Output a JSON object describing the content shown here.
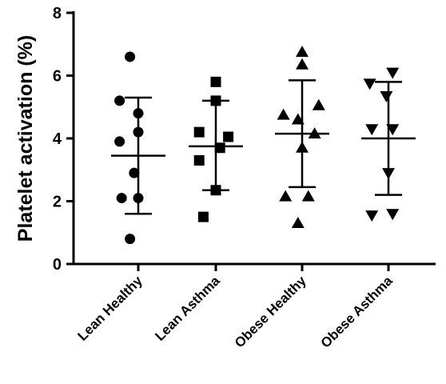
{
  "chart_data": {
    "type": "scatter",
    "title": "",
    "xlabel": "",
    "ylabel": "Platelet activation (%)",
    "ylim": [
      0,
      8
    ],
    "yticks": [
      0,
      2,
      4,
      6,
      8
    ],
    "categories": [
      "Lean Healthy",
      "Lean Asthma",
      "Obese Healthy",
      "Obese Asthma"
    ],
    "grid": false,
    "series": [
      {
        "marker": "circle",
        "mean": 3.45,
        "sd_upper": 5.3,
        "sd_lower": 1.6,
        "points": [
          {
            "dx": 0.3,
            "y": 6.6
          },
          {
            "dx": 0.05,
            "y": 5.2
          },
          {
            "dx": 0.5,
            "y": 4.8
          },
          {
            "dx": 0.5,
            "y": 4.2
          },
          {
            "dx": 0.05,
            "y": 3.9
          },
          {
            "dx": 0.4,
            "y": 2.9
          },
          {
            "dx": 0.1,
            "y": 2.1
          },
          {
            "dx": 0.5,
            "y": 2.1
          },
          {
            "dx": 0.3,
            "y": 0.8
          }
        ]
      },
      {
        "marker": "square",
        "mean": 3.75,
        "sd_upper": 5.2,
        "sd_lower": 2.35,
        "points": [
          {
            "dx": 0.5,
            "y": 5.8
          },
          {
            "dx": 0.5,
            "y": 5.2
          },
          {
            "dx": 0.1,
            "y": 4.2
          },
          {
            "dx": 0.8,
            "y": 4.05
          },
          {
            "dx": 0.6,
            "y": 3.7
          },
          {
            "dx": 0.1,
            "y": 3.3
          },
          {
            "dx": 0.5,
            "y": 2.35
          },
          {
            "dx": 0.2,
            "y": 1.5
          }
        ]
      },
      {
        "marker": "triangle-up",
        "mean": 4.15,
        "sd_upper": 5.85,
        "sd_lower": 2.45,
        "points": [
          {
            "dx": 0.5,
            "y": 6.75
          },
          {
            "dx": 0.5,
            "y": 6.35
          },
          {
            "dx": 0.05,
            "y": 4.75
          },
          {
            "dx": 0.9,
            "y": 5.05
          },
          {
            "dx": 0.4,
            "y": 4.6
          },
          {
            "dx": 0.8,
            "y": 4.15
          },
          {
            "dx": 0.5,
            "y": 3.7
          },
          {
            "dx": 0.1,
            "y": 2.15
          },
          {
            "dx": 0.65,
            "y": 2.15
          },
          {
            "dx": 0.4,
            "y": 1.3
          }
        ]
      },
      {
        "marker": "triangle-down",
        "mean": 4.0,
        "sd_upper": 5.8,
        "sd_lower": 2.2,
        "points": [
          {
            "dx": 0.6,
            "y": 6.1
          },
          {
            "dx": 0.05,
            "y": 5.75
          },
          {
            "dx": 0.45,
            "y": 5.35
          },
          {
            "dx": 0.1,
            "y": 4.3
          },
          {
            "dx": 0.6,
            "y": 4.3
          },
          {
            "dx": 0.5,
            "y": 2.9
          },
          {
            "dx": 0.1,
            "y": 1.55
          },
          {
            "dx": 0.6,
            "y": 1.6
          }
        ]
      }
    ]
  }
}
